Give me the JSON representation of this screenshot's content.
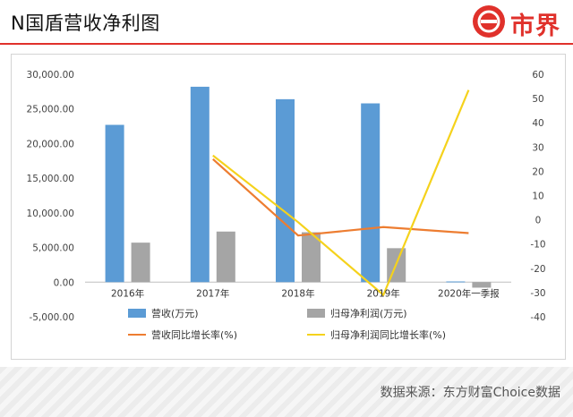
{
  "header": {
    "title": "N国盾营收净利图",
    "logo_text": "市界"
  },
  "footer": {
    "source": "数据来源：东方财富Choice数据"
  },
  "colors": {
    "revenue_bar": "#5b9bd5",
    "profit_bar": "#a5a5a5",
    "revenue_growth": "#ed7d31",
    "profit_growth": "#f5d21c",
    "brand": "#e0312b"
  },
  "chart_data": {
    "type": "bar",
    "categories": [
      "2016年",
      "2017年",
      "2018年",
      "2019年",
      "2020年一季报"
    ],
    "y_left": {
      "min": -5000,
      "max": 30000,
      "step": 5000,
      "ticks": [
        "-5,000.00",
        "0.00",
        "5,000.00",
        "10,000.00",
        "15,000.00",
        "20,000.00",
        "25,000.00",
        "30,000.00"
      ]
    },
    "y_right": {
      "min": -40,
      "max": 60,
      "step": 10,
      "ticks": [
        "-40",
        "-30",
        "-20",
        "-10",
        "0",
        "10",
        "20",
        "30",
        "40",
        "50",
        "60"
      ]
    },
    "series": [
      {
        "name": "营收(万元)",
        "kind": "bar",
        "axis": "left",
        "color": "#5b9bd5",
        "values": [
          22700,
          28200,
          26400,
          25800,
          100
        ]
      },
      {
        "name": "归母净利润(万元)",
        "kind": "bar",
        "axis": "left",
        "color": "#a5a5a5",
        "values": [
          5700,
          7300,
          7200,
          4900,
          -800
        ]
      },
      {
        "name": "营收同比增长率(%)",
        "kind": "line",
        "axis": "right",
        "color": "#ed7d31",
        "values": [
          null,
          25,
          -6.5,
          -3,
          -5.5
        ]
      },
      {
        "name": "归母净利润同比增长率(%)",
        "kind": "line",
        "axis": "right",
        "color": "#f5d21c",
        "values": [
          null,
          26.5,
          -1,
          -31,
          53.5
        ]
      }
    ],
    "grid": false,
    "legend": "bottom"
  }
}
